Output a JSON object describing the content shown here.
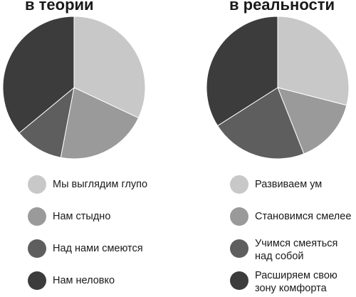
{
  "chart_data": [
    {
      "type": "pie",
      "title": "в теории",
      "categories": [
        "Мы выглядим глупо",
        "Нам стыдно",
        "Над нами смеются",
        "Нам неловко"
      ],
      "values": [
        32,
        21,
        11,
        36
      ],
      "colors": [
        "#c8c8c8",
        "#9a9a9a",
        "#5e5e5e",
        "#3c3c3c"
      ]
    },
    {
      "type": "pie",
      "title": "в реальности",
      "categories": [
        "Развиваем ум",
        "Становимся смелее",
        "Учимся смеяться\nнад собой",
        "Расширяем свою\nзону комфорта"
      ],
      "values": [
        29,
        15,
        22,
        34
      ],
      "colors": [
        "#c8c8c8",
        "#9a9a9a",
        "#5e5e5e",
        "#3c3c3c"
      ]
    }
  ]
}
